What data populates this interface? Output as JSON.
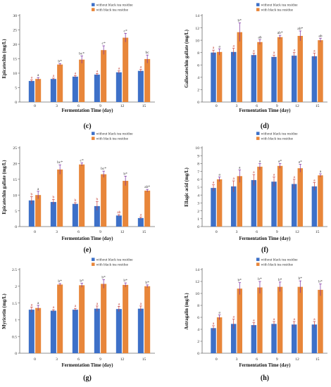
{
  "figure": {
    "legend_labels": [
      "without black tea residue",
      "with black tea residue"
    ],
    "colors": {
      "without": "#3d70c8",
      "with": "#e8863a",
      "without_sd_tip": "#c83c3c",
      "with_sd_tip": "#7a2ca0",
      "letter": "#c0392b",
      "letter_sig": "#3a3a3a",
      "axis": "#6d6d6d"
    }
  },
  "chart_data": [
    {
      "panel": "(c)",
      "type": "bar",
      "ylabel": "Epicatechin (mg/L)",
      "xlabel": "Fermentation Time (day)",
      "ylim": [
        0,
        30
      ],
      "yticks": [
        0,
        5,
        10,
        15,
        20,
        25,
        30
      ],
      "categories": [
        "0",
        "3",
        "6",
        "9",
        "12",
        "15"
      ],
      "legend_position": "top-right",
      "series": [
        {
          "name": "without black tea residue",
          "values": [
            7.3,
            8.0,
            8.8,
            9.5,
            10.3,
            10.8
          ],
          "errors": [
            0.4,
            0.3,
            0.4,
            0.4,
            0.5,
            0.5
          ],
          "labels": [
            "a",
            "a",
            "a",
            "a",
            "a",
            "a"
          ]
        },
        {
          "name": "with black tea residue",
          "values": [
            8.0,
            13.0,
            14.7,
            18.0,
            22.3,
            14.9
          ],
          "errors": [
            0.5,
            0.3,
            1.3,
            1.5,
            1.5,
            1.4
          ],
          "labels": [
            "a",
            "b*",
            "bc*",
            "c*",
            "c*",
            "bc"
          ]
        }
      ]
    },
    {
      "panel": "(d)",
      "type": "bar",
      "ylabel": "Gallocatechin gallate (mg/L)",
      "xlabel": "Fermentation Time (day)",
      "ylim": [
        0,
        14
      ],
      "yticks": [
        0,
        2,
        4,
        6,
        8,
        10,
        12,
        14
      ],
      "categories": [
        "0",
        "3",
        "6",
        "9",
        "12",
        "15"
      ],
      "legend_position": "top-right",
      "series": [
        {
          "name": "without black tea residue",
          "values": [
            8.0,
            8.1,
            7.6,
            7.3,
            7.5,
            7.4
          ],
          "errors": [
            0.4,
            0.6,
            0.3,
            0.3,
            0.5,
            0.5
          ],
          "labels": [
            "a",
            "a",
            "a",
            "a",
            "a",
            "a"
          ]
        },
        {
          "name": "with black tea residue",
          "values": [
            8.1,
            11.3,
            9.7,
            10.5,
            10.7,
            10.0
          ],
          "errors": [
            0.5,
            1.5,
            0.4,
            0.3,
            0.8,
            0.3
          ],
          "labels": [
            "a",
            "b*",
            "ab",
            "ab*",
            "ab*",
            "ab"
          ]
        }
      ]
    },
    {
      "panel": "(e)",
      "type": "bar",
      "ylabel": "Epicatechin gallate (mg/L)",
      "xlabel": "Fermentation Time (day)",
      "ylim": [
        0,
        25
      ],
      "yticks": [
        0,
        5,
        10,
        15,
        20,
        25
      ],
      "categories": [
        "0",
        "3",
        "6",
        "9",
        "12",
        "15"
      ],
      "legend_position": "top-right",
      "series": [
        {
          "name": "without black tea residue",
          "values": [
            8.3,
            7.8,
            7.2,
            6.5,
            3.5,
            2.7
          ],
          "errors": [
            1.2,
            0.8,
            0.4,
            1.4,
            0.3,
            0.3
          ],
          "labels": [
            "b",
            "b",
            "b",
            "b",
            "ab",
            "a"
          ]
        },
        {
          "name": "with black tea residue",
          "values": [
            10.0,
            18.1,
            19.7,
            16.6,
            14.5,
            11.4
          ],
          "errors": [
            1.2,
            1.5,
            0.5,
            1.0,
            1.5,
            0.4
          ],
          "labels": [
            "a",
            "bc*",
            "c*",
            "bc*",
            "b*",
            "ab*"
          ]
        }
      ]
    },
    {
      "panel": "(f)",
      "type": "bar",
      "ylabel": "Ellagic acid (mg/L)",
      "xlabel": "Fermentation Time (day)",
      "ylim": [
        0,
        10
      ],
      "yticks": [
        0,
        1,
        2,
        3,
        4,
        5,
        6,
        7,
        8,
        9,
        10
      ],
      "categories": [
        "0",
        "3",
        "6",
        "9",
        "12",
        "15"
      ],
      "legend_position": "top-right",
      "series": [
        {
          "name": "without black tea residue",
          "values": [
            4.9,
            5.1,
            5.9,
            5.7,
            5.4,
            5.1
          ],
          "errors": [
            0.4,
            0.7,
            0.7,
            0.6,
            0.6,
            0.5
          ],
          "labels": [
            "a",
            "a",
            "a",
            "a",
            "a",
            "a"
          ]
        },
        {
          "name": "with black tea residue",
          "values": [
            6.0,
            6.4,
            7.6,
            7.7,
            7.4,
            6.5
          ],
          "errors": [
            0.3,
            0.8,
            0.4,
            0.3,
            0.5,
            0.2
          ],
          "labels": [
            "a",
            "a",
            "a",
            "a*",
            "a*",
            "a"
          ]
        }
      ]
    },
    {
      "panel": "(g)",
      "type": "bar",
      "ylabel": "Myricetin (mg/L)",
      "xlabel": "Fermentation Time (day)",
      "ylim": [
        0,
        2.5
      ],
      "yticks": [
        0,
        0.5,
        1,
        1.5,
        2,
        2.5
      ],
      "categories": [
        "0",
        "3",
        "6",
        "9",
        "12",
        "15"
      ],
      "legend_position": "top-right",
      "series": [
        {
          "name": "without black tea residue",
          "values": [
            1.3,
            1.27,
            1.3,
            1.33,
            1.32,
            1.33
          ],
          "errors": [
            0.08,
            0.03,
            0.04,
            0.08,
            0.08,
            0.08
          ],
          "labels": [
            "a",
            "a",
            "a",
            "a",
            "a",
            "a"
          ]
        },
        {
          "name": "with black tea residue",
          "values": [
            1.35,
            2.05,
            2.03,
            2.07,
            2.04,
            2.0
          ],
          "errors": [
            0.08,
            0.03,
            0.06,
            0.13,
            0.06,
            0.04
          ],
          "labels": [
            "a",
            "b*",
            "b*",
            "b*",
            "b*",
            "b*"
          ]
        }
      ]
    },
    {
      "panel": "(h)",
      "type": "bar",
      "ylabel": "Astragalin (mg/L)",
      "xlabel": "Fermentation Time (day)",
      "ylim": [
        0,
        14
      ],
      "yticks": [
        0,
        2,
        4,
        6,
        8,
        10,
        12,
        14
      ],
      "categories": [
        "0",
        "3",
        "6",
        "9",
        "12",
        "15"
      ],
      "legend_position": "top-right",
      "series": [
        {
          "name": "without black tea residue",
          "values": [
            4.2,
            4.9,
            4.7,
            4.9,
            4.8,
            4.8
          ],
          "errors": [
            0.4,
            0.8,
            0.4,
            0.4,
            0.5,
            0.5
          ],
          "labels": [
            "a",
            "a",
            "a",
            "a",
            "a",
            "a"
          ]
        },
        {
          "name": "with black tea residue",
          "values": [
            6.0,
            10.8,
            11.0,
            11.1,
            11.1,
            10.6
          ],
          "errors": [
            0.4,
            1.0,
            1.0,
            0.8,
            1.0,
            1.0
          ],
          "labels": [
            "a",
            "b*",
            "b*",
            "b*",
            "b*",
            "b*"
          ]
        }
      ]
    }
  ]
}
